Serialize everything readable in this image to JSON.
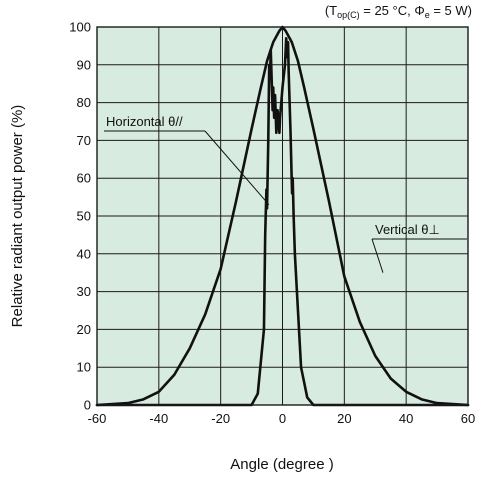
{
  "chart_data": {
    "type": "line",
    "title_parts": {
      "open": "(T",
      "sub": "op(C)",
      "rest_a": " = 25 °C, Φ",
      "sub2": "e",
      "rest_b": " = 5 W)"
    },
    "xlabel": "Angle (degree )",
    "ylabel": "Relative radiant output power (%)",
    "xlim": [
      -60,
      60
    ],
    "ylim": [
      0,
      100
    ],
    "x_ticks": [
      -60,
      -40,
      -20,
      0,
      20,
      40,
      60
    ],
    "y_ticks": [
      0,
      10,
      20,
      30,
      40,
      50,
      60,
      70,
      80,
      90,
      100
    ],
    "grid": true,
    "plot_background": "#d8ebe0",
    "line_color": "#111111",
    "grid_color": "#1a1a1a",
    "series": [
      {
        "name": "Vertical θ⊥",
        "x": [
          -60,
          -50,
          -45,
          -40,
          -35,
          -30,
          -25,
          -20,
          -15,
          -10,
          -7,
          -5,
          -3,
          -1,
          0,
          1,
          3,
          5,
          7,
          10,
          15,
          20,
          25,
          30,
          35,
          40,
          45,
          50,
          60
        ],
        "y": [
          0,
          0.5,
          1.5,
          3.5,
          8,
          15,
          24,
          36,
          54,
          73,
          84,
          91,
          96,
          99,
          100,
          99,
          96,
          91,
          84,
          73,
          54,
          34,
          22,
          13,
          7,
          3.5,
          1.5,
          0.5,
          0
        ]
      },
      {
        "name": "Horizontal θ//",
        "x": [
          -60,
          -10,
          -8,
          -6,
          -5.6,
          -5.2,
          -5,
          -4.6,
          -4.3,
          -4,
          -3.8,
          -3.5,
          -3.2,
          -3,
          -2.7,
          -2.4,
          -2,
          -1.6,
          -1.2,
          -1,
          -0.8,
          0,
          0.8,
          1.2,
          1.5,
          1.8,
          2,
          2.3,
          2.6,
          2.9,
          3.1,
          3.3,
          3.6,
          4,
          5,
          6,
          8,
          10,
          60
        ],
        "y": [
          0,
          0,
          3,
          20,
          45,
          57,
          52,
          70,
          90,
          88,
          94,
          86,
          78,
          84,
          76,
          82,
          72,
          78,
          74,
          72,
          76,
          84,
          90,
          97,
          92,
          96,
          88,
          80,
          72,
          62,
          56,
          60,
          50,
          40,
          25,
          10,
          2,
          0,
          0
        ]
      }
    ],
    "annotations": [
      {
        "name": "horizontal",
        "label": "Horizontal θ//",
        "points_to": [
          -4.4,
          53
        ]
      },
      {
        "name": "vertical",
        "label": "Vertical θ⊥",
        "points_to": [
          32.5,
          35
        ]
      }
    ]
  }
}
